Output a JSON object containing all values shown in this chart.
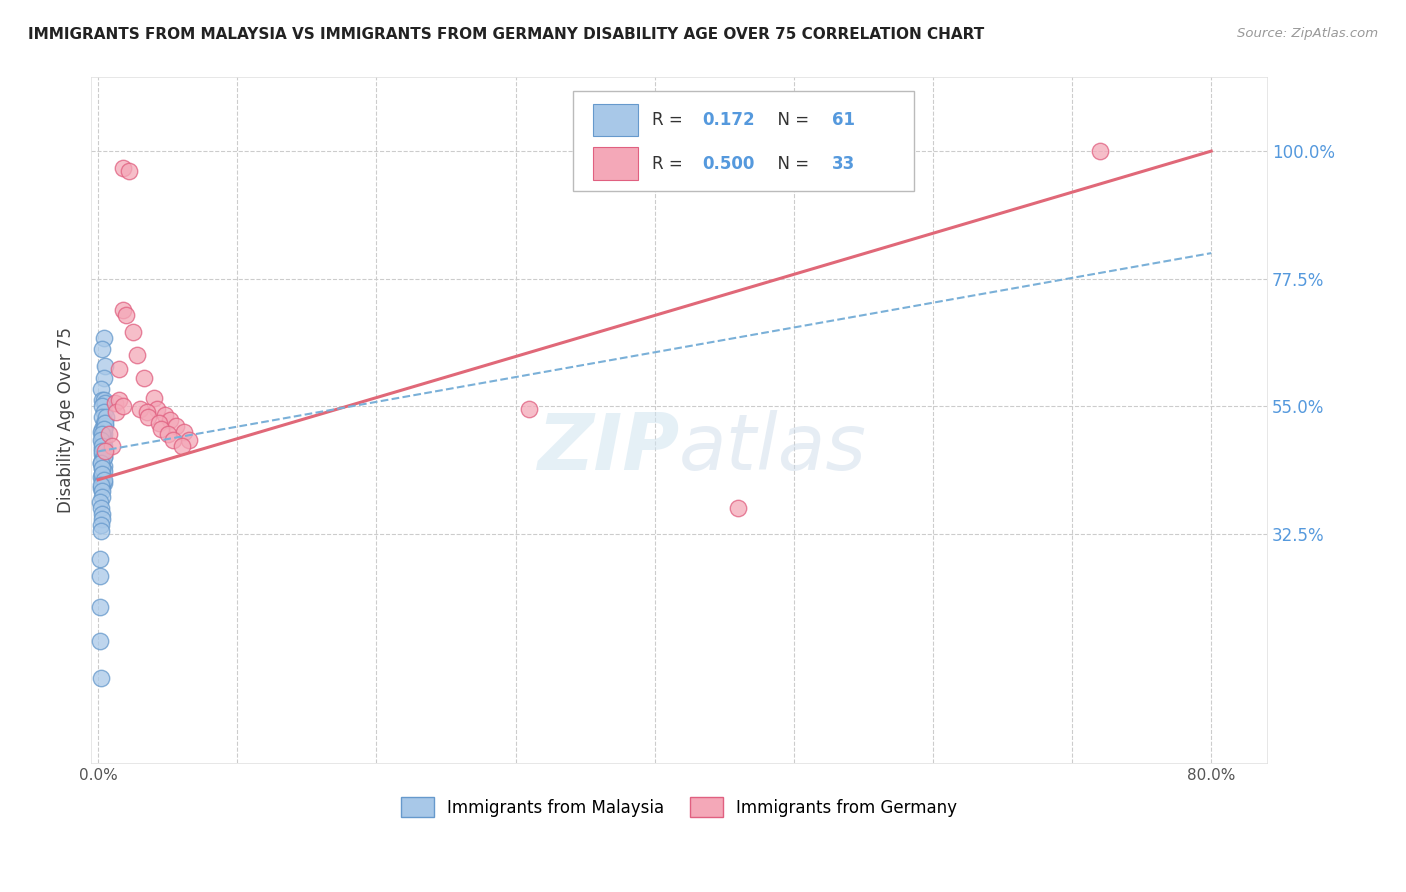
{
  "title": "IMMIGRANTS FROM MALAYSIA VS IMMIGRANTS FROM GERMANY DISABILITY AGE OVER 75 CORRELATION CHART",
  "source": "Source: ZipAtlas.com",
  "ylabel": "Disability Age Over 75",
  "xlim": [
    -0.005,
    0.84
  ],
  "ylim": [
    -0.08,
    1.13
  ],
  "ytick_labels": [
    "100.0%",
    "77.5%",
    "55.0%",
    "32.5%"
  ],
  "ytick_vals": [
    1.0,
    0.775,
    0.55,
    0.325
  ],
  "xtick_labels": [
    "0.0%",
    "",
    "",
    "",
    "",
    "",
    "",
    "",
    "80.0%"
  ],
  "xtick_vals": [
    0.0,
    0.1,
    0.2,
    0.3,
    0.4,
    0.5,
    0.6,
    0.7,
    0.8
  ],
  "legend_blue_label": "Immigrants from Malaysia",
  "legend_pink_label": "Immigrants from Germany",
  "R_blue": "0.172",
  "N_blue": "61",
  "R_pink": "0.500",
  "N_pink": "33",
  "blue_fill": "#a8c8e8",
  "pink_fill": "#f4a8b8",
  "blue_edge": "#6699cc",
  "pink_edge": "#e06080",
  "line_blue_color": "#7ab0d8",
  "line_pink_color": "#e06878",
  "watermark_zip": "ZIP",
  "watermark_atlas": "atlas",
  "grid_color": "#cccccc",
  "blue_scatter_x": [
    0.004,
    0.003,
    0.005,
    0.004,
    0.002,
    0.003,
    0.004,
    0.005,
    0.003,
    0.004,
    0.003,
    0.004,
    0.005,
    0.003,
    0.002,
    0.004,
    0.003,
    0.004,
    0.003,
    0.004,
    0.003,
    0.004,
    0.003,
    0.004,
    0.003,
    0.002,
    0.004,
    0.003,
    0.004,
    0.003,
    0.002,
    0.003,
    0.004,
    0.003,
    0.002,
    0.006,
    0.005,
    0.004,
    0.003,
    0.002,
    0.003,
    0.003,
    0.004,
    0.002,
    0.003,
    0.003,
    0.004,
    0.002,
    0.003,
    0.003,
    0.001,
    0.002,
    0.003,
    0.003,
    0.002,
    0.002,
    0.001,
    0.001,
    0.001,
    0.001,
    0.002
  ],
  "blue_scatter_y": [
    0.67,
    0.65,
    0.62,
    0.6,
    0.58,
    0.56,
    0.56,
    0.555,
    0.55,
    0.54,
    0.53,
    0.52,
    0.515,
    0.51,
    0.505,
    0.5,
    0.495,
    0.49,
    0.485,
    0.48,
    0.475,
    0.47,
    0.465,
    0.46,
    0.455,
    0.45,
    0.445,
    0.44,
    0.435,
    0.43,
    0.425,
    0.42,
    0.415,
    0.41,
    0.405,
    0.53,
    0.52,
    0.51,
    0.5,
    0.49,
    0.48,
    0.47,
    0.46,
    0.45,
    0.44,
    0.43,
    0.42,
    0.41,
    0.4,
    0.39,
    0.38,
    0.37,
    0.36,
    0.35,
    0.34,
    0.33,
    0.28,
    0.25,
    0.195,
    0.135,
    0.07
  ],
  "pink_scatter_x": [
    0.018,
    0.022,
    0.018,
    0.02,
    0.025,
    0.028,
    0.015,
    0.033,
    0.04,
    0.012,
    0.042,
    0.048,
    0.052,
    0.056,
    0.062,
    0.008,
    0.065,
    0.01,
    0.03,
    0.035,
    0.036,
    0.044,
    0.045,
    0.05,
    0.054,
    0.06,
    0.005,
    0.015,
    0.013,
    0.018,
    0.31,
    0.46,
    0.72
  ],
  "pink_scatter_y": [
    0.97,
    0.965,
    0.72,
    0.71,
    0.68,
    0.64,
    0.615,
    0.6,
    0.565,
    0.555,
    0.545,
    0.535,
    0.525,
    0.515,
    0.505,
    0.5,
    0.49,
    0.48,
    0.545,
    0.54,
    0.53,
    0.52,
    0.51,
    0.5,
    0.49,
    0.48,
    0.47,
    0.56,
    0.54,
    0.55,
    0.545,
    0.37,
    1.0
  ],
  "blue_line_x": [
    0.0,
    0.8
  ],
  "blue_line_y": [
    0.47,
    0.82
  ],
  "pink_line_x": [
    0.0,
    0.8
  ],
  "pink_line_y": [
    0.42,
    1.0
  ]
}
